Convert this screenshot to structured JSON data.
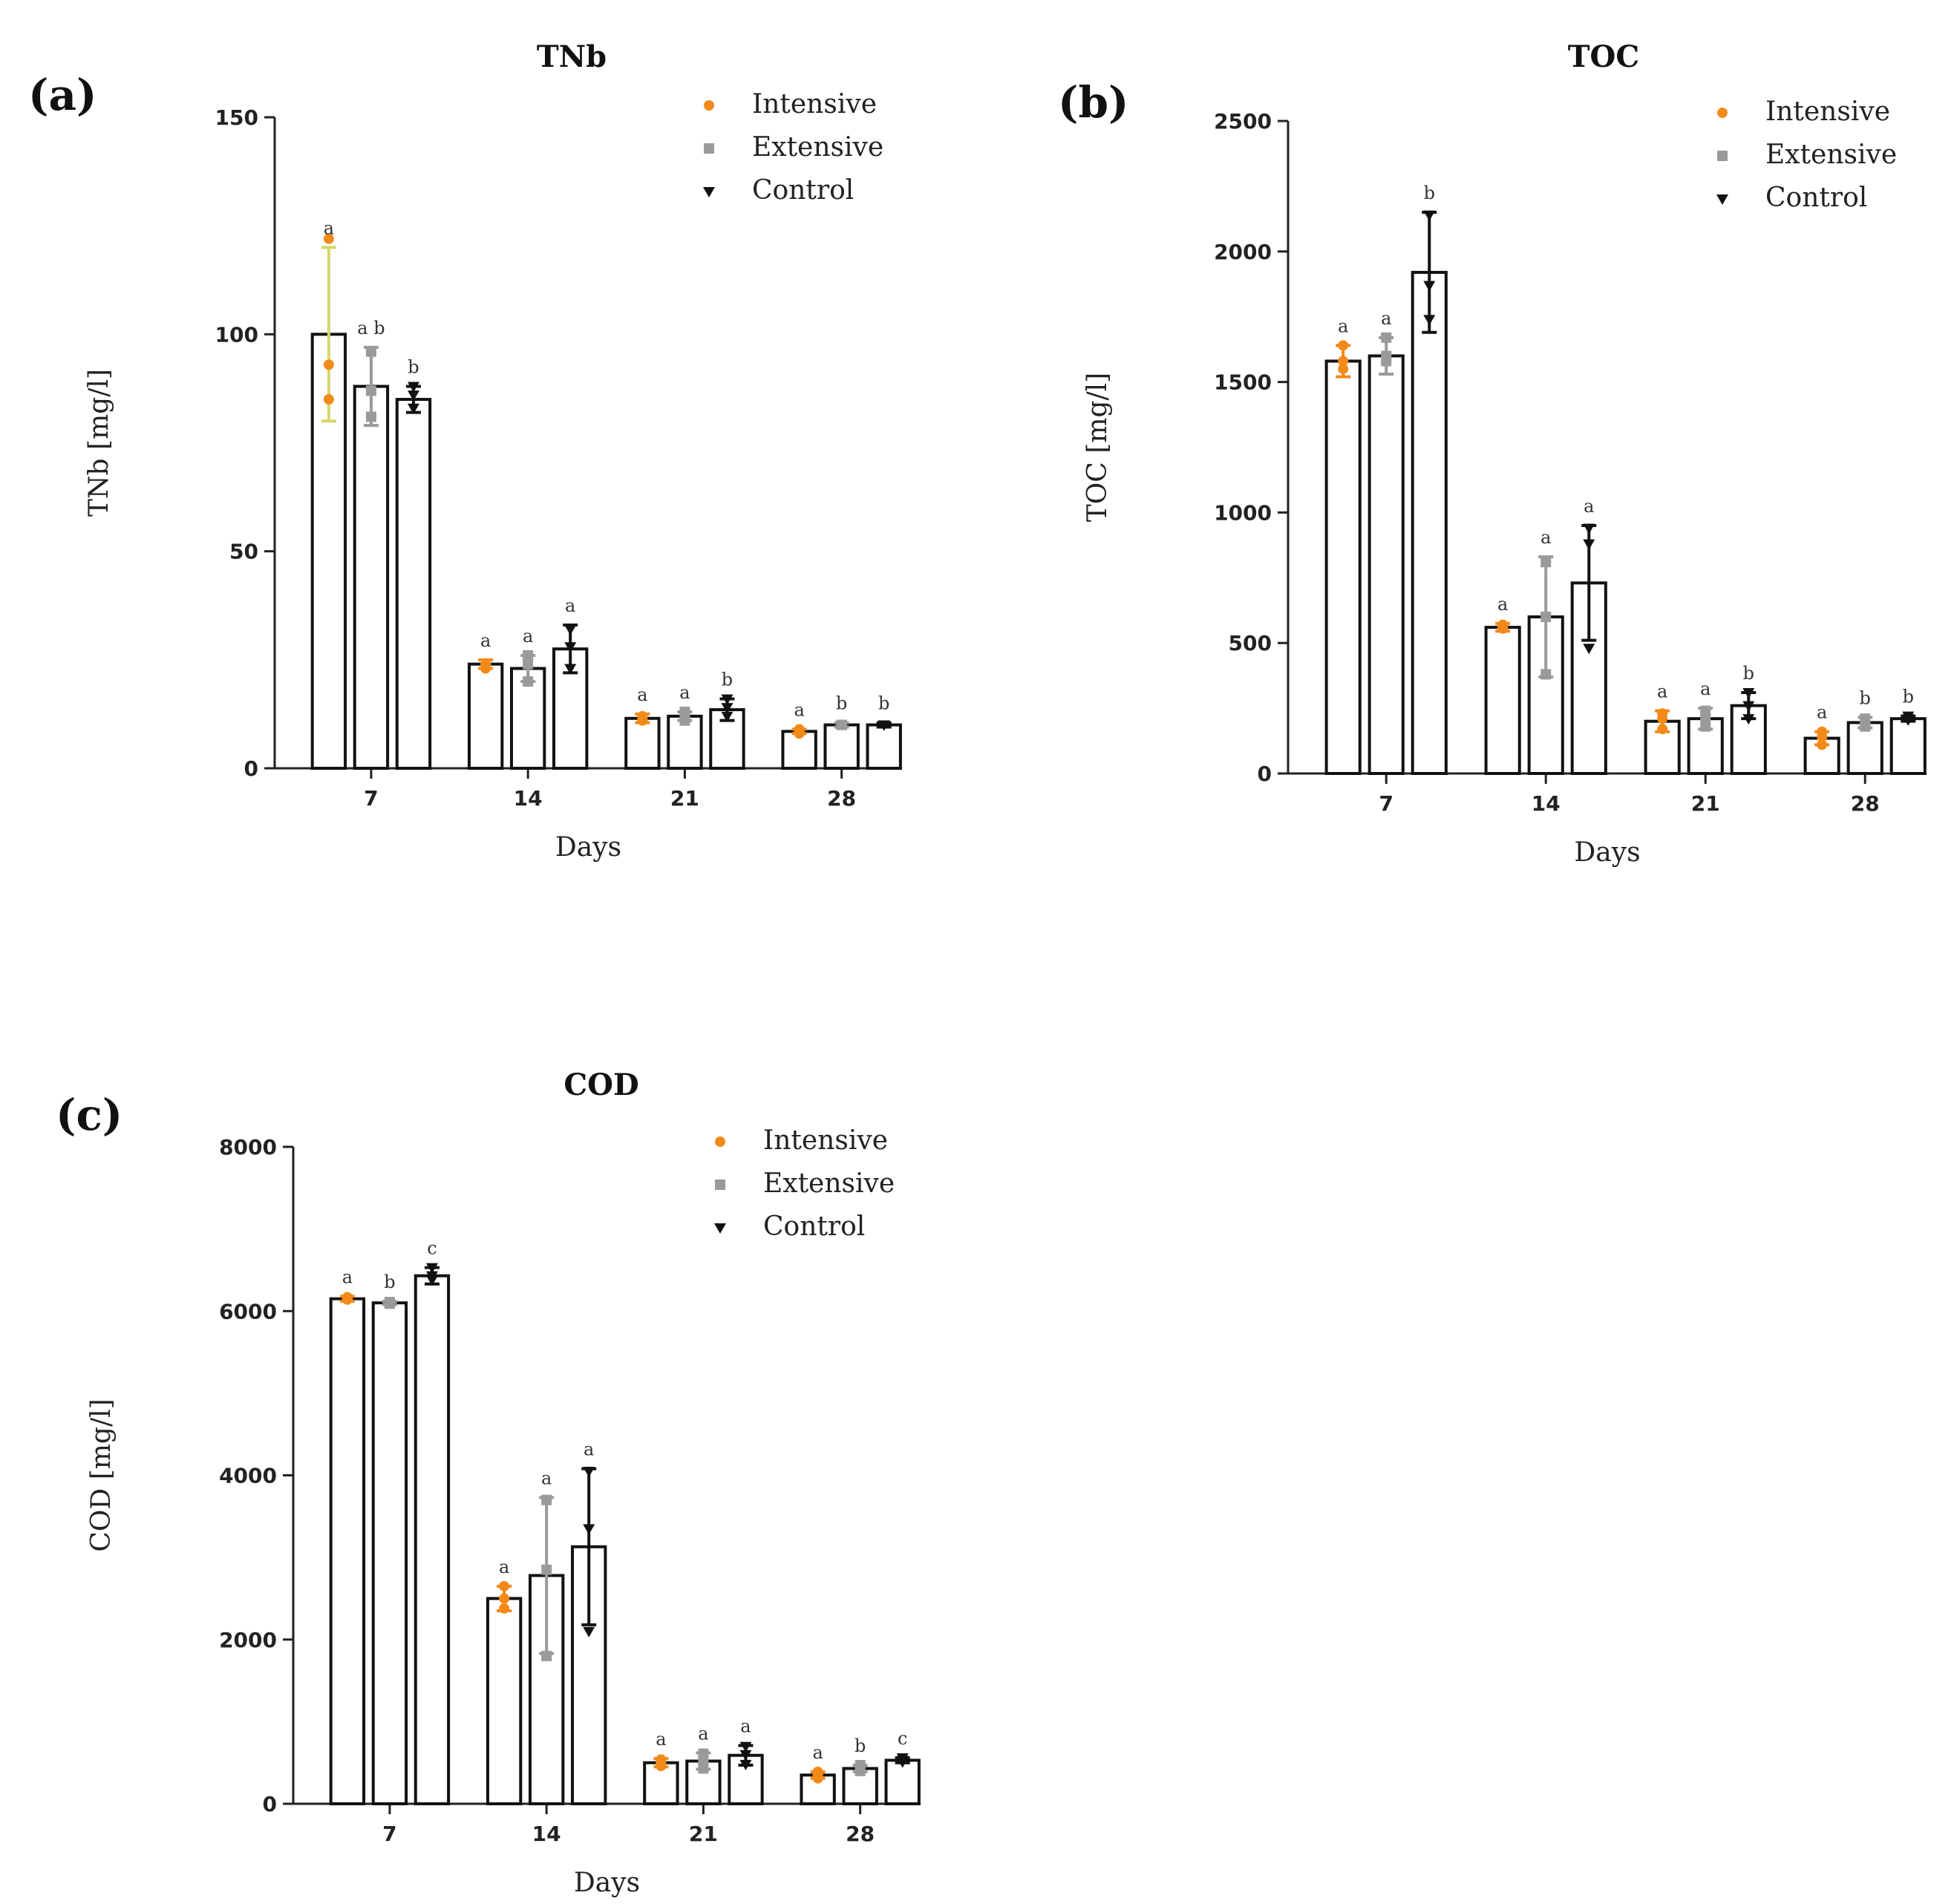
{
  "colors": {
    "intensive": "#f28a1a",
    "intensive_err": "#d6d66a",
    "extensive": "#9a9a9a",
    "control": "#111111"
  },
  "chart_data": [
    {
      "panel": "(a)",
      "type": "bar",
      "title": "TNb",
      "xlabel": "Days",
      "ylabel": "TNb [mg/l]",
      "ylim": [
        0,
        150
      ],
      "yticks": [
        0,
        50,
        100,
        150
      ],
      "categories": [
        "7",
        "14",
        "21",
        "28"
      ],
      "legend": [
        "Intensive",
        "Extensive",
        "Control"
      ],
      "series": [
        {
          "name": "Intensive",
          "values": [
            100,
            24,
            11.5,
            8.5
          ],
          "errors": [
            20,
            1,
            1,
            0.5
          ],
          "points": [
            [
              122,
              93,
              85
            ],
            [
              24,
              23,
              24
            ],
            [
              12,
              11,
              11.5
            ],
            [
              9,
              8,
              8.5
            ]
          ],
          "letters": [
            "a",
            "a",
            "a",
            "a"
          ]
        },
        {
          "name": "Extensive",
          "values": [
            88,
            23,
            12,
            10
          ],
          "errors": [
            9,
            3,
            1,
            0.5
          ],
          "points": [
            [
              96,
              87,
              81
            ],
            [
              26,
              24,
              20
            ],
            [
              13,
              12,
              11
            ],
            [
              10,
              10,
              10
            ]
          ],
          "letters": [
            "a b",
            "a",
            "a",
            "b"
          ]
        },
        {
          "name": "Control",
          "values": [
            85,
            27.5,
            13.5,
            10
          ],
          "errors": [
            3,
            5.5,
            2.5,
            0.5
          ],
          "points": [
            [
              88,
              86,
              83
            ],
            [
              32,
              28,
              23
            ],
            [
              16,
              14,
              12
            ],
            [
              10,
              10,
              10
            ]
          ],
          "letters": [
            "b",
            "a",
            "b",
            "b"
          ]
        }
      ]
    },
    {
      "panel": "(b)",
      "type": "bar",
      "title": "TOC",
      "xlabel": "Days",
      "ylabel": "TOC [mg/l]",
      "ylim": [
        0,
        2500
      ],
      "yticks": [
        0,
        500,
        1000,
        1500,
        2000,
        2500
      ],
      "categories": [
        "7",
        "14",
        "21",
        "28"
      ],
      "legend": [
        "Intensive",
        "Extensive",
        "Control"
      ],
      "series": [
        {
          "name": "Intensive",
          "values": [
            1580,
            560,
            200,
            135
          ],
          "errors": [
            60,
            15,
            40,
            25
          ],
          "points": [
            [
              1640,
              1580,
              1550
            ],
            [
              570,
              560,
              555
            ],
            [
              230,
              210,
              170
            ],
            [
              160,
              140,
              110
            ]
          ],
          "letters": [
            "a",
            "a",
            "a",
            "a"
          ]
        },
        {
          "name": "Extensive",
          "values": [
            1600,
            600,
            210,
            195
          ],
          "errors": [
            70,
            230,
            40,
            20
          ],
          "points": [
            [
              1670,
              1600,
              1580
            ],
            [
              810,
              600,
              380
            ],
            [
              240,
              210,
              180
            ],
            [
              210,
              195,
              180
            ]
          ],
          "letters": [
            "a",
            "a",
            "a",
            "b"
          ]
        },
        {
          "name": "Control",
          "values": [
            1920,
            730,
            260,
            210
          ],
          "errors": [
            230,
            220,
            50,
            10
          ],
          "points": [
            [
              2140,
              1870,
              1740
            ],
            [
              940,
              880,
              480
            ],
            [
              310,
              260,
              210
            ],
            [
              220,
              210,
              205
            ]
          ],
          "letters": [
            "b",
            "a",
            "b",
            "b"
          ]
        }
      ]
    },
    {
      "panel": "(c)",
      "type": "bar",
      "title": "COD",
      "xlabel": "Days",
      "ylabel": "COD [mg/l]",
      "ylim": [
        0,
        8000
      ],
      "yticks": [
        0,
        2000,
        4000,
        6000,
        8000
      ],
      "categories": [
        "7",
        "14",
        "21",
        "28"
      ],
      "legend": [
        "Intensive",
        "Extensive",
        "Control"
      ],
      "series": [
        {
          "name": "Intensive",
          "values": [
            6150,
            2500,
            500,
            350
          ],
          "errors": [
            30,
            150,
            50,
            40
          ],
          "points": [
            [
              6170,
              6150,
              6140
            ],
            [
              2650,
              2500,
              2380
            ],
            [
              540,
              500,
              460
            ],
            [
              390,
              350,
              310
            ]
          ],
          "letters": [
            "a",
            "a",
            "a",
            "a"
          ]
        },
        {
          "name": "Extensive",
          "values": [
            6100,
            2780,
            520,
            430
          ],
          "errors": [
            20,
            950,
            100,
            40
          ],
          "points": [
            [
              6110,
              6100,
              6090
            ],
            [
              3700,
              2850,
              1800
            ],
            [
              610,
              520,
              430
            ],
            [
              470,
              430,
              400
            ]
          ],
          "letters": [
            "b",
            "a",
            "a",
            "b"
          ]
        },
        {
          "name": "Control",
          "values": [
            6430,
            3130,
            590,
            530
          ],
          "errors": [
            100,
            950,
            120,
            30
          ],
          "points": [
            [
              6530,
              6430,
              6380
            ],
            [
              4050,
              3350,
              2100
            ],
            [
              700,
              600,
              480
            ],
            [
              560,
              530,
              510
            ]
          ],
          "letters": [
            "c",
            "a",
            "a",
            "c"
          ]
        }
      ]
    }
  ]
}
